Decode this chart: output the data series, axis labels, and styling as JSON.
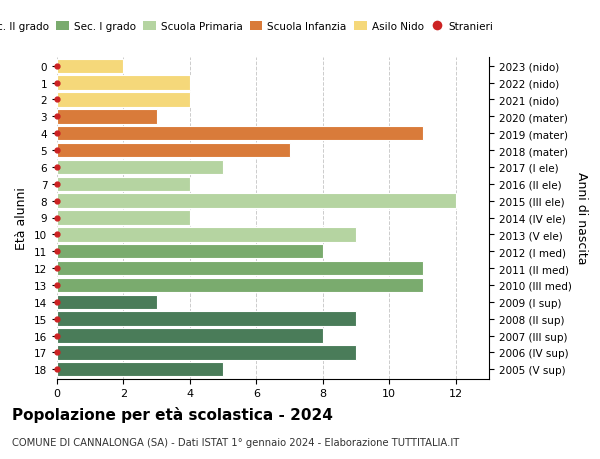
{
  "ages": [
    18,
    17,
    16,
    15,
    14,
    13,
    12,
    11,
    10,
    9,
    8,
    7,
    6,
    5,
    4,
    3,
    2,
    1,
    0
  ],
  "right_labels": [
    "2005 (V sup)",
    "2006 (IV sup)",
    "2007 (III sup)",
    "2008 (II sup)",
    "2009 (I sup)",
    "2010 (III med)",
    "2011 (II med)",
    "2012 (I med)",
    "2013 (V ele)",
    "2014 (IV ele)",
    "2015 (III ele)",
    "2016 (II ele)",
    "2017 (I ele)",
    "2018 (mater)",
    "2019 (mater)",
    "2020 (mater)",
    "2021 (nido)",
    "2022 (nido)",
    "2023 (nido)"
  ],
  "values": [
    5,
    9,
    8,
    9,
    3,
    11,
    11,
    8,
    9,
    4,
    12,
    4,
    5,
    7,
    11,
    3,
    4,
    4,
    2
  ],
  "bar_colors": [
    "#4a7c59",
    "#4a7c59",
    "#4a7c59",
    "#4a7c59",
    "#4a7c59",
    "#7aab6e",
    "#7aab6e",
    "#7aab6e",
    "#b5d4a1",
    "#b5d4a1",
    "#b5d4a1",
    "#b5d4a1",
    "#b5d4a1",
    "#d97b3a",
    "#d97b3a",
    "#d97b3a",
    "#f5d87a",
    "#f5d87a",
    "#f5d87a"
  ],
  "dot_color": "#cc2222",
  "legend_labels": [
    "Sec. II grado",
    "Sec. I grado",
    "Scuola Primaria",
    "Scuola Infanzia",
    "Asilo Nido",
    "Stranieri"
  ],
  "legend_colors": [
    "#4a7c59",
    "#7aab6e",
    "#b5d4a1",
    "#d97b3a",
    "#f5d87a",
    "#cc2222"
  ],
  "title": "Popolazione per età scolastica - 2024",
  "subtitle": "COMUNE DI CANNALONGA (SA) - Dati ISTAT 1° gennaio 2024 - Elaborazione TUTTITALIA.IT",
  "ylabel": "Età alunni",
  "right_ylabel": "Anni di nascita",
  "xlim": [
    0,
    13
  ],
  "xticks": [
    0,
    2,
    4,
    6,
    8,
    10,
    12
  ],
  "background_color": "#ffffff",
  "grid_color": "#cccccc"
}
